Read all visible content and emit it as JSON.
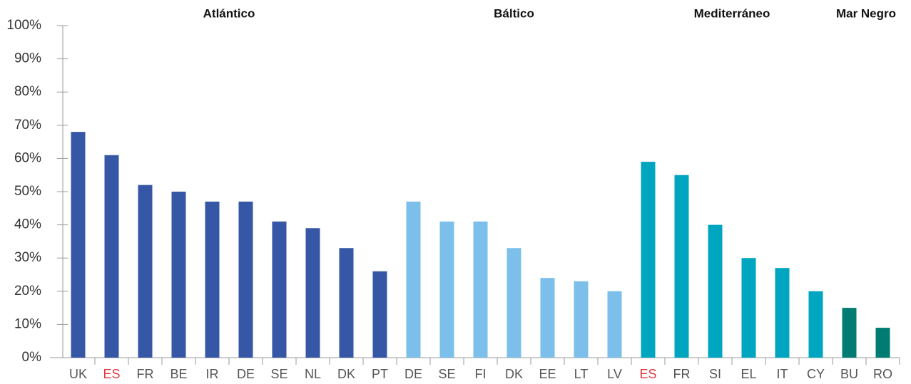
{
  "chart_data": {
    "type": "bar",
    "categories": [
      "UK",
      "ES",
      "FR",
      "BE",
      "IR",
      "DE",
      "SE",
      "NL",
      "DK",
      "PT",
      "DE",
      "SE",
      "FI",
      "DK",
      "EE",
      "LT",
      "LV",
      "ES",
      "FR",
      "SI",
      "EL",
      "IT",
      "CY",
      "BU",
      "RO"
    ],
    "series": [
      {
        "name": "Atlántico",
        "color": "#3557a5",
        "values": [
          68,
          61,
          52,
          50,
          47,
          47,
          41,
          39,
          33,
          26,
          null,
          null,
          null,
          null,
          null,
          null,
          null,
          null,
          null,
          null,
          null,
          null,
          null,
          null,
          null
        ]
      },
      {
        "name": "Báltico",
        "color": "#7bbfea",
        "values": [
          null,
          null,
          null,
          null,
          null,
          null,
          null,
          null,
          null,
          null,
          47,
          41,
          41,
          33,
          24,
          23,
          20,
          null,
          null,
          null,
          null,
          null,
          null,
          null,
          null
        ]
      },
      {
        "name": "Mediterráneo",
        "color": "#00a6c0",
        "values": [
          null,
          null,
          null,
          null,
          null,
          null,
          null,
          null,
          null,
          null,
          null,
          null,
          null,
          null,
          null,
          null,
          null,
          59,
          55,
          40,
          30,
          27,
          20,
          null,
          null
        ]
      },
      {
        "name": "Mar Negro",
        "color": "#007c73",
        "values": [
          null,
          null,
          null,
          null,
          null,
          null,
          null,
          null,
          null,
          null,
          null,
          null,
          null,
          null,
          null,
          null,
          null,
          null,
          null,
          null,
          null,
          null,
          null,
          15,
          9
        ]
      }
    ],
    "highlight": {
      "categories": [
        "ES"
      ],
      "color": "#e0383e"
    },
    "ylim": [
      0,
      100
    ],
    "yticks": [
      {
        "value": 0,
        "label": "0%"
      },
      {
        "value": 10,
        "label": "10%"
      },
      {
        "value": 20,
        "label": "20%"
      },
      {
        "value": 30,
        "label": "30%"
      },
      {
        "value": 40,
        "label": "40%"
      },
      {
        "value": 50,
        "label": "50%"
      },
      {
        "value": 60,
        "label": "60%"
      },
      {
        "value": 70,
        "label": "70%"
      },
      {
        "value": 80,
        "label": "80%"
      },
      {
        "value": 90,
        "label": "90%"
      },
      {
        "value": 100,
        "label": "100%"
      }
    ],
    "grid": false
  }
}
